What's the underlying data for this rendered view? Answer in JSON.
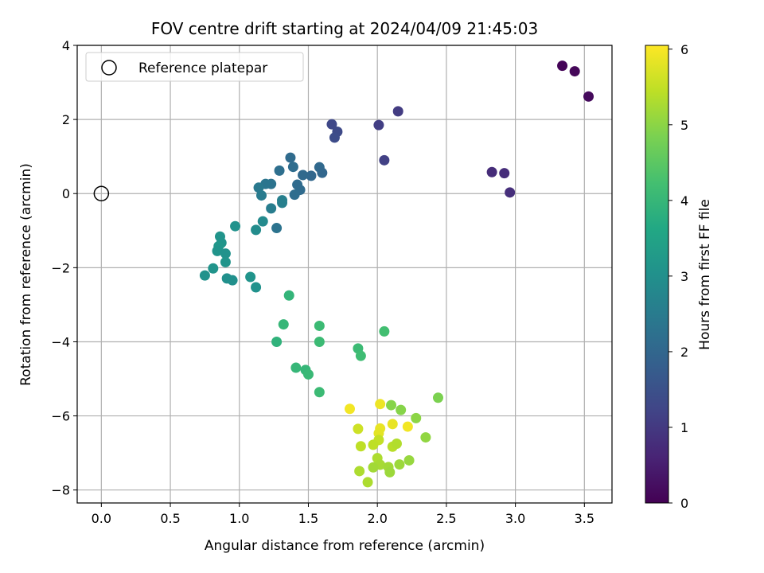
{
  "chart_data": {
    "type": "scatter",
    "title": "FOV centre drift starting at 2024/04/09 21:45:03",
    "xlabel": "Angular distance from reference (arcmin)",
    "ylabel": "Rotation from reference (arcmin)",
    "xlim": [
      -0.175,
      3.7
    ],
    "ylim": [
      -8.35,
      4.0
    ],
    "xticks": [
      0.0,
      0.5,
      1.0,
      1.5,
      2.0,
      2.5,
      3.0,
      3.5
    ],
    "xtick_labels": [
      "0.0",
      "0.5",
      "1.0",
      "1.5",
      "2.0",
      "2.5",
      "3.0",
      "3.5"
    ],
    "yticks": [
      -8,
      -6,
      -4,
      -2,
      0,
      2,
      4
    ],
    "ytick_labels": [
      "−8",
      "−6",
      "−4",
      "−2",
      "0",
      "2",
      "4"
    ],
    "grid": true,
    "legend": {
      "position": "top-left",
      "entries": [
        "Reference platepar"
      ]
    },
    "reference_point": {
      "x": 0.0,
      "y": 0.0
    },
    "colorbar": {
      "label": "Hours from first FF file",
      "colormap": "viridis",
      "range": [
        0,
        6.05
      ],
      "ticks": [
        0,
        1,
        2,
        3,
        4,
        5,
        6
      ],
      "tick_labels": [
        "0",
        "1",
        "2",
        "3",
        "4",
        "5",
        "6"
      ]
    },
    "points": [
      {
        "x": 3.34,
        "y": 3.45,
        "h": 0.05
      },
      {
        "x": 3.43,
        "y": 3.3,
        "h": 0.1
      },
      {
        "x": 3.53,
        "y": 2.62,
        "h": 0.15
      },
      {
        "x": 2.83,
        "y": 0.58,
        "h": 0.75
      },
      {
        "x": 2.92,
        "y": 0.55,
        "h": 0.78
      },
      {
        "x": 2.96,
        "y": 0.03,
        "h": 0.82
      },
      {
        "x": 2.15,
        "y": 2.22,
        "h": 1.05
      },
      {
        "x": 2.01,
        "y": 1.85,
        "h": 1.1
      },
      {
        "x": 2.05,
        "y": 0.9,
        "h": 1.15
      },
      {
        "x": 1.67,
        "y": 1.87,
        "h": 1.3
      },
      {
        "x": 1.71,
        "y": 1.67,
        "h": 1.35
      },
      {
        "x": 1.69,
        "y": 1.51,
        "h": 1.4
      },
      {
        "x": 1.37,
        "y": 0.97,
        "h": 2.1
      },
      {
        "x": 1.39,
        "y": 0.72,
        "h": 2.15
      },
      {
        "x": 1.29,
        "y": 0.62,
        "h": 2.2
      },
      {
        "x": 1.58,
        "y": 0.71,
        "h": 2.05
      },
      {
        "x": 1.6,
        "y": 0.56,
        "h": 2.0
      },
      {
        "x": 1.52,
        "y": 0.48,
        "h": 2.0
      },
      {
        "x": 1.46,
        "y": 0.5,
        "h": 2.05
      },
      {
        "x": 1.42,
        "y": 0.24,
        "h": 2.1
      },
      {
        "x": 1.44,
        "y": 0.1,
        "h": 2.1
      },
      {
        "x": 1.4,
        "y": -0.03,
        "h": 2.15
      },
      {
        "x": 1.23,
        "y": 0.26,
        "h": 2.3
      },
      {
        "x": 1.19,
        "y": 0.26,
        "h": 2.35
      },
      {
        "x": 1.14,
        "y": 0.16,
        "h": 2.45
      },
      {
        "x": 1.16,
        "y": -0.05,
        "h": 2.5
      },
      {
        "x": 1.31,
        "y": -0.18,
        "h": 2.6
      },
      {
        "x": 1.31,
        "y": -0.25,
        "h": 2.6
      },
      {
        "x": 1.23,
        "y": -0.4,
        "h": 2.55
      },
      {
        "x": 1.27,
        "y": -0.93,
        "h": 2.3
      },
      {
        "x": 1.17,
        "y": -0.75,
        "h": 2.85
      },
      {
        "x": 1.12,
        "y": -0.98,
        "h": 2.9
      },
      {
        "x": 0.97,
        "y": -0.88,
        "h": 3.05
      },
      {
        "x": 0.86,
        "y": -1.16,
        "h": 3.1
      },
      {
        "x": 0.87,
        "y": -1.33,
        "h": 3.1
      },
      {
        "x": 0.85,
        "y": -1.42,
        "h": 3.15
      },
      {
        "x": 0.84,
        "y": -1.55,
        "h": 3.1
      },
      {
        "x": 0.9,
        "y": -1.62,
        "h": 3.05
      },
      {
        "x": 0.9,
        "y": -1.85,
        "h": 3.1
      },
      {
        "x": 0.81,
        "y": -2.02,
        "h": 3.1
      },
      {
        "x": 0.75,
        "y": -2.21,
        "h": 3.05
      },
      {
        "x": 0.91,
        "y": -2.29,
        "h": 3.0
      },
      {
        "x": 0.95,
        "y": -2.34,
        "h": 3.0
      },
      {
        "x": 1.08,
        "y": -2.25,
        "h": 3.1
      },
      {
        "x": 1.12,
        "y": -2.53,
        "h": 3.05
      },
      {
        "x": 1.36,
        "y": -2.75,
        "h": 3.95
      },
      {
        "x": 1.32,
        "y": -3.53,
        "h": 4.0
      },
      {
        "x": 1.27,
        "y": -4.0,
        "h": 3.9
      },
      {
        "x": 1.58,
        "y": -3.57,
        "h": 4.1
      },
      {
        "x": 1.58,
        "y": -4.0,
        "h": 4.1
      },
      {
        "x": 1.41,
        "y": -4.7,
        "h": 4.0
      },
      {
        "x": 1.48,
        "y": -4.76,
        "h": 4.0
      },
      {
        "x": 1.5,
        "y": -4.88,
        "h": 4.05
      },
      {
        "x": 1.58,
        "y": -5.36,
        "h": 4.1
      },
      {
        "x": 1.86,
        "y": -4.18,
        "h": 4.1
      },
      {
        "x": 1.88,
        "y": -4.38,
        "h": 4.15
      },
      {
        "x": 2.05,
        "y": -3.72,
        "h": 4.2
      },
      {
        "x": 2.44,
        "y": -5.51,
        "h": 4.85
      },
      {
        "x": 2.1,
        "y": -5.71,
        "h": 4.95
      },
      {
        "x": 2.17,
        "y": -5.84,
        "h": 4.95
      },
      {
        "x": 2.28,
        "y": -6.06,
        "h": 5.0
      },
      {
        "x": 2.35,
        "y": -6.58,
        "h": 5.05
      },
      {
        "x": 2.02,
        "y": -5.68,
        "h": 5.9
      },
      {
        "x": 1.8,
        "y": -5.81,
        "h": 5.95
      },
      {
        "x": 2.22,
        "y": -6.29,
        "h": 5.95
      },
      {
        "x": 2.11,
        "y": -6.22,
        "h": 5.85
      },
      {
        "x": 2.02,
        "y": -6.34,
        "h": 5.85
      },
      {
        "x": 2.01,
        "y": -6.47,
        "h": 5.8
      },
      {
        "x": 1.86,
        "y": -6.35,
        "h": 5.6
      },
      {
        "x": 2.01,
        "y": -6.65,
        "h": 5.5
      },
      {
        "x": 1.88,
        "y": -6.82,
        "h": 5.45
      },
      {
        "x": 1.97,
        "y": -6.78,
        "h": 5.45
      },
      {
        "x": 2.11,
        "y": -6.83,
        "h": 5.4
      },
      {
        "x": 2.14,
        "y": -6.75,
        "h": 5.35
      },
      {
        "x": 2.0,
        "y": -7.14,
        "h": 5.3
      },
      {
        "x": 2.02,
        "y": -7.32,
        "h": 5.25
      },
      {
        "x": 1.97,
        "y": -7.39,
        "h": 5.2
      },
      {
        "x": 2.08,
        "y": -7.38,
        "h": 5.2
      },
      {
        "x": 2.16,
        "y": -7.31,
        "h": 5.15
      },
      {
        "x": 2.23,
        "y": -7.2,
        "h": 5.1
      },
      {
        "x": 2.09,
        "y": -7.52,
        "h": 5.15
      },
      {
        "x": 1.87,
        "y": -7.49,
        "h": 5.3
      },
      {
        "x": 1.93,
        "y": -7.79,
        "h": 5.3
      }
    ]
  }
}
